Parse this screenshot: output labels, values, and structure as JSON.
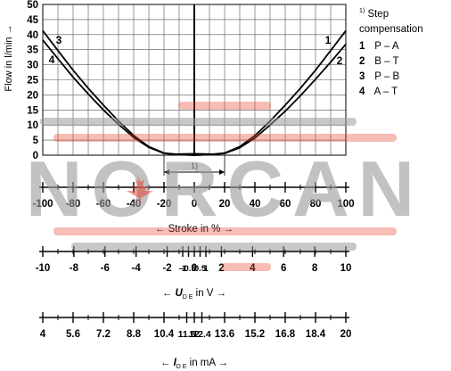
{
  "chart_data": {
    "type": "line",
    "ylabel": "Flow in l/min →",
    "ylim": [
      0,
      50
    ],
    "yticks": [
      0,
      5,
      10,
      15,
      20,
      25,
      30,
      35,
      40,
      45,
      50
    ],
    "xlim": [
      -100,
      100
    ],
    "grid": true,
    "footnote_marker": "1)",
    "series": [
      {
        "name": "1",
        "x": [
          0,
          10,
          20,
          30,
          40,
          50,
          60,
          70,
          80,
          90,
          100
        ],
        "y": [
          0,
          0.2,
          0.7,
          2.8,
          6.5,
          11.3,
          16.6,
          22.2,
          28.2,
          34.7,
          41.3
        ]
      },
      {
        "name": "2",
        "x": [
          0,
          10,
          20,
          30,
          40,
          50,
          60,
          70,
          80,
          90,
          100
        ],
        "y": [
          0,
          0.2,
          0.6,
          2.5,
          5.7,
          10,
          14.6,
          19.7,
          25.2,
          30.9,
          36.8
        ]
      },
      {
        "name": "3",
        "x": [
          -100,
          -90,
          -80,
          -70,
          -60,
          -50,
          -40,
          -30,
          -20,
          -10,
          0
        ],
        "y": [
          41.3,
          34.7,
          28.2,
          22.2,
          16.6,
          11.3,
          6.5,
          2.8,
          0.7,
          0.2,
          0
        ]
      },
      {
        "name": "4",
        "x": [
          -100,
          -90,
          -80,
          -70,
          -60,
          -50,
          -40,
          -30,
          -20,
          -10,
          0
        ],
        "y": [
          38.2,
          32,
          25.9,
          20.3,
          15,
          10.2,
          5.9,
          2.6,
          0.6,
          0.2,
          0
        ]
      }
    ],
    "scales": [
      {
        "label": "← Stroke in % →",
        "ticks": [
          "-100",
          "-80",
          "-60",
          "-40",
          "-20",
          "0",
          "20",
          "40",
          "60",
          "80",
          "100"
        ]
      },
      {
        "label_main": "← U",
        "label_sub": "D E",
        "label_rest": " in V →",
        "ticks": [
          "-10",
          "-8",
          "-6",
          "-4",
          "-2",
          "-1",
          "-0.5",
          "0",
          "0.5",
          "1",
          "2",
          "4",
          "6",
          "8",
          "10"
        ]
      },
      {
        "label_main": "← I",
        "label_sub": "D E",
        "label_rest": " in mA →",
        "ticks": [
          "4",
          "5.6",
          "7.2",
          "8.8",
          "10.4",
          "11.6",
          "12",
          "12.4",
          "13.6",
          "15.2",
          "16.8",
          "18.4",
          "20"
        ]
      }
    ]
  },
  "legend": {
    "note": "Step compensation",
    "note_sup": "1)",
    "items": [
      {
        "num": "1",
        "label": "P – A"
      },
      {
        "num": "2",
        "label": "B – T"
      },
      {
        "num": "3",
        "label": "P – B"
      },
      {
        "num": "4",
        "label": "A – T"
      }
    ]
  },
  "watermark": {
    "text": "NORCAN",
    "color": "#9a9a9a",
    "accent": "#e8412c"
  },
  "colors": {
    "curve": "#000000",
    "grid": "#555555"
  }
}
